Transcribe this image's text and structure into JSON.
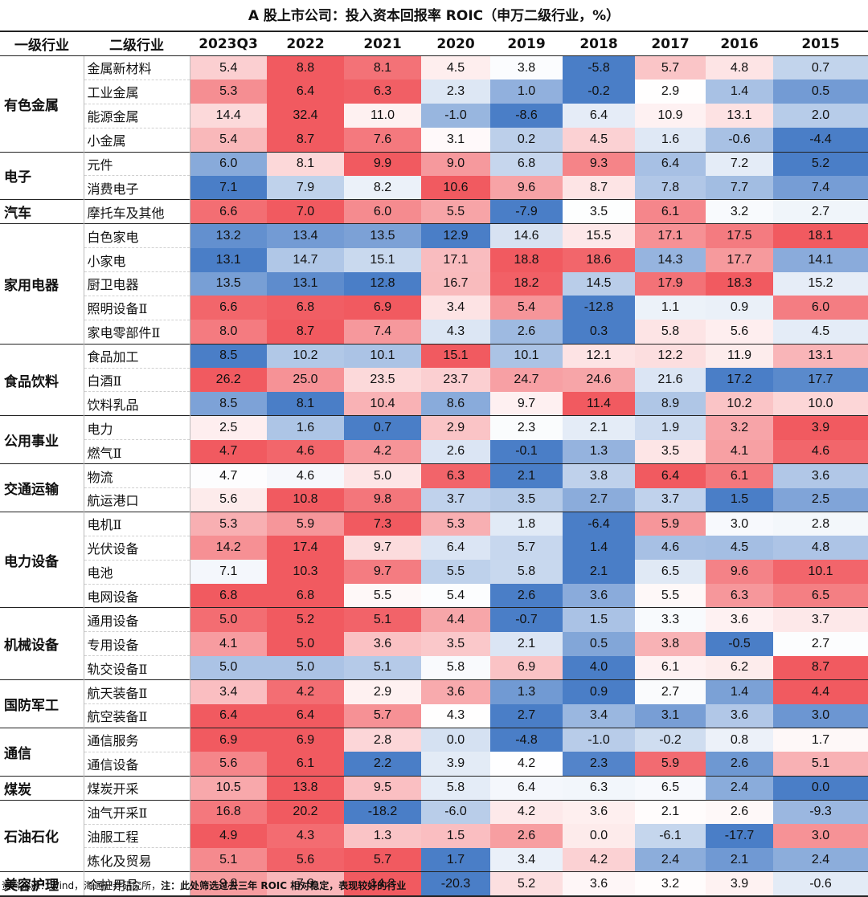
{
  "title": "A 股上市公司：投入资本回报率 ROIC（申万二级行业，%）",
  "source": {
    "text": "资料来源：Wind，海通证券研究所，",
    "note": "注：此处筛选过去三年 ROIC 相对稳定，表现较好的行业"
  },
  "colors": {
    "high": "#f15a60",
    "mid": "#ffffff",
    "low": "#4a7ec7"
  },
  "chart_data": {
    "type": "heatmap",
    "title": "A 股上市公司：投入资本回报率 ROIC（申万二级行业，%）",
    "row_headers": [
      "一级行业",
      "二级行业"
    ],
    "columns": [
      "2023Q3",
      "2022",
      "2021",
      "2020",
      "2019",
      "2018",
      "2017",
      "2016",
      "2015"
    ],
    "color_scale": "per-row: red = higher, blue = lower",
    "groups": [
      {
        "name": "有色金属",
        "rows": [
          {
            "name": "金属新材料",
            "values": [
              "5.4",
              "8.8",
              "8.1",
              "4.5",
              "3.8",
              "-5.8",
              "5.7",
              "4.8",
              "0.7"
            ]
          },
          {
            "name": "工业金属",
            "values": [
              "5.3",
              "6.4",
              "6.3",
              "2.3",
              "1.0",
              "-0.2",
              "2.9",
              "1.4",
              "0.5"
            ]
          },
          {
            "name": "能源金属",
            "values": [
              "14.4",
              "32.4",
              "11.0",
              "-1.0",
              "-8.6",
              "6.4",
              "10.9",
              "13.1",
              "2.0"
            ]
          },
          {
            "name": "小金属",
            "values": [
              "5.4",
              "8.7",
              "7.6",
              "3.1",
              "0.2",
              "4.5",
              "1.6",
              "-0.6",
              "-4.4"
            ]
          }
        ]
      },
      {
        "name": "电子",
        "rows": [
          {
            "name": "元件",
            "values": [
              "6.0",
              "8.1",
              "9.9",
              "9.0",
              "6.8",
              "9.3",
              "6.4",
              "7.2",
              "5.2"
            ]
          },
          {
            "name": "消费电子",
            "values": [
              "7.1",
              "7.9",
              "8.2",
              "10.6",
              "9.6",
              "8.7",
              "7.8",
              "7.7",
              "7.4"
            ]
          }
        ]
      },
      {
        "name": "汽车",
        "rows": [
          {
            "name": "摩托车及其他",
            "values": [
              "6.6",
              "7.0",
              "6.0",
              "5.5",
              "-7.9",
              "3.5",
              "6.1",
              "3.2",
              "2.7"
            ]
          }
        ]
      },
      {
        "name": "家用电器",
        "rows": [
          {
            "name": "白色家电",
            "values": [
              "13.2",
              "13.4",
              "13.5",
              "12.9",
              "14.6",
              "15.5",
              "17.1",
              "17.5",
              "18.1"
            ]
          },
          {
            "name": "小家电",
            "values": [
              "13.1",
              "14.7",
              "15.1",
              "17.1",
              "18.8",
              "18.6",
              "14.3",
              "17.7",
              "14.1"
            ]
          },
          {
            "name": "厨卫电器",
            "values": [
              "13.5",
              "13.1",
              "12.8",
              "16.7",
              "18.2",
              "14.5",
              "17.9",
              "18.3",
              "15.2"
            ]
          },
          {
            "name": "照明设备Ⅱ",
            "values": [
              "6.6",
              "6.8",
              "6.9",
              "3.4",
              "5.4",
              "-12.8",
              "1.1",
              "0.9",
              "6.0"
            ]
          },
          {
            "name": "家电零部件Ⅱ",
            "values": [
              "8.0",
              "8.7",
              "7.4",
              "4.3",
              "2.6",
              "0.3",
              "5.8",
              "5.6",
              "4.5"
            ]
          }
        ]
      },
      {
        "name": "食品饮料",
        "rows": [
          {
            "name": "食品加工",
            "values": [
              "8.5",
              "10.2",
              "10.1",
              "15.1",
              "10.1",
              "12.1",
              "12.2",
              "11.9",
              "13.1"
            ]
          },
          {
            "name": "白酒Ⅱ",
            "values": [
              "26.2",
              "25.0",
              "23.5",
              "23.7",
              "24.7",
              "24.6",
              "21.6",
              "17.2",
              "17.7"
            ]
          },
          {
            "name": "饮料乳品",
            "values": [
              "8.5",
              "8.1",
              "10.4",
              "8.6",
              "9.7",
              "11.4",
              "8.9",
              "10.2",
              "10.0"
            ]
          }
        ]
      },
      {
        "name": "公用事业",
        "rows": [
          {
            "name": "电力",
            "values": [
              "2.5",
              "1.6",
              "0.7",
              "2.9",
              "2.3",
              "2.1",
              "1.9",
              "3.2",
              "3.9"
            ]
          },
          {
            "name": "燃气Ⅱ",
            "values": [
              "4.7",
              "4.6",
              "4.2",
              "2.6",
              "-0.1",
              "1.3",
              "3.5",
              "4.1",
              "4.6"
            ]
          }
        ]
      },
      {
        "name": "交通运输",
        "rows": [
          {
            "name": "物流",
            "values": [
              "4.7",
              "4.6",
              "5.0",
              "6.3",
              "2.1",
              "3.8",
              "6.4",
              "6.1",
              "3.6"
            ]
          },
          {
            "name": "航运港口",
            "values": [
              "5.6",
              "10.8",
              "9.8",
              "3.7",
              "3.5",
              "2.7",
              "3.7",
              "1.5",
              "2.5"
            ]
          }
        ]
      },
      {
        "name": "电力设备",
        "rows": [
          {
            "name": "电机Ⅱ",
            "values": [
              "5.3",
              "5.9",
              "7.3",
              "5.3",
              "1.8",
              "-6.4",
              "5.9",
              "3.0",
              "2.8"
            ]
          },
          {
            "name": "光伏设备",
            "values": [
              "14.2",
              "17.4",
              "9.7",
              "6.4",
              "5.7",
              "1.4",
              "4.6",
              "4.5",
              "4.8"
            ]
          },
          {
            "name": "电池",
            "values": [
              "7.1",
              "10.3",
              "9.7",
              "5.5",
              "5.8",
              "2.1",
              "6.5",
              "9.6",
              "10.1"
            ]
          },
          {
            "name": "电网设备",
            "values": [
              "6.8",
              "6.8",
              "5.5",
              "5.4",
              "2.6",
              "3.6",
              "5.5",
              "6.3",
              "6.5"
            ]
          }
        ]
      },
      {
        "name": "机械设备",
        "rows": [
          {
            "name": "通用设备",
            "values": [
              "5.0",
              "5.2",
              "5.1",
              "4.4",
              "-0.7",
              "1.5",
              "3.3",
              "3.6",
              "3.7"
            ]
          },
          {
            "name": "专用设备",
            "values": [
              "4.1",
              "5.0",
              "3.6",
              "3.5",
              "2.1",
              "0.5",
              "3.8",
              "-0.5",
              "2.7"
            ]
          },
          {
            "name": "轨交设备Ⅱ",
            "values": [
              "5.0",
              "5.0",
              "5.1",
              "5.8",
              "6.9",
              "4.0",
              "6.1",
              "6.2",
              "8.7"
            ]
          }
        ]
      },
      {
        "name": "国防军工",
        "rows": [
          {
            "name": "航天装备Ⅱ",
            "values": [
              "3.4",
              "4.2",
              "2.9",
              "3.6",
              "1.3",
              "0.9",
              "2.7",
              "1.4",
              "4.4"
            ]
          },
          {
            "name": "航空装备Ⅱ",
            "values": [
              "6.4",
              "6.4",
              "5.7",
              "4.3",
              "2.7",
              "3.4",
              "3.1",
              "3.6",
              "3.0"
            ]
          }
        ]
      },
      {
        "name": "通信",
        "rows": [
          {
            "name": "通信服务",
            "values": [
              "6.9",
              "6.9",
              "2.8",
              "0.0",
              "-4.8",
              "-1.0",
              "-0.2",
              "0.8",
              "1.7"
            ]
          },
          {
            "name": "通信设备",
            "values": [
              "5.6",
              "6.1",
              "2.2",
              "3.9",
              "4.2",
              "2.3",
              "5.9",
              "2.6",
              "5.1"
            ]
          }
        ]
      },
      {
        "name": "煤炭",
        "rows": [
          {
            "name": "煤炭开采",
            "values": [
              "10.5",
              "13.8",
              "9.5",
              "5.8",
              "6.4",
              "6.3",
              "6.5",
              "2.4",
              "0.0"
            ]
          }
        ]
      },
      {
        "name": "石油石化",
        "rows": [
          {
            "name": "油气开采Ⅱ",
            "values": [
              "16.8",
              "20.2",
              "-18.2",
              "-6.0",
              "4.2",
              "3.6",
              "2.1",
              "2.6",
              "-9.3"
            ]
          },
          {
            "name": "油服工程",
            "values": [
              "4.9",
              "4.3",
              "1.3",
              "1.5",
              "2.6",
              "0.0",
              "-6.1",
              "-17.7",
              "3.0"
            ]
          },
          {
            "name": "炼化及贸易",
            "values": [
              "5.1",
              "5.6",
              "5.7",
              "1.7",
              "3.4",
              "4.2",
              "2.4",
              "2.1",
              "2.4"
            ]
          }
        ]
      },
      {
        "name": "美容护理",
        "rows": [
          {
            "name": "个护用品",
            "values": [
              "9.8",
              "7.9",
              "14.3",
              "-20.3",
              "5.2",
              "3.6",
              "3.2",
              "3.9",
              "-0.6"
            ]
          }
        ]
      }
    ]
  }
}
